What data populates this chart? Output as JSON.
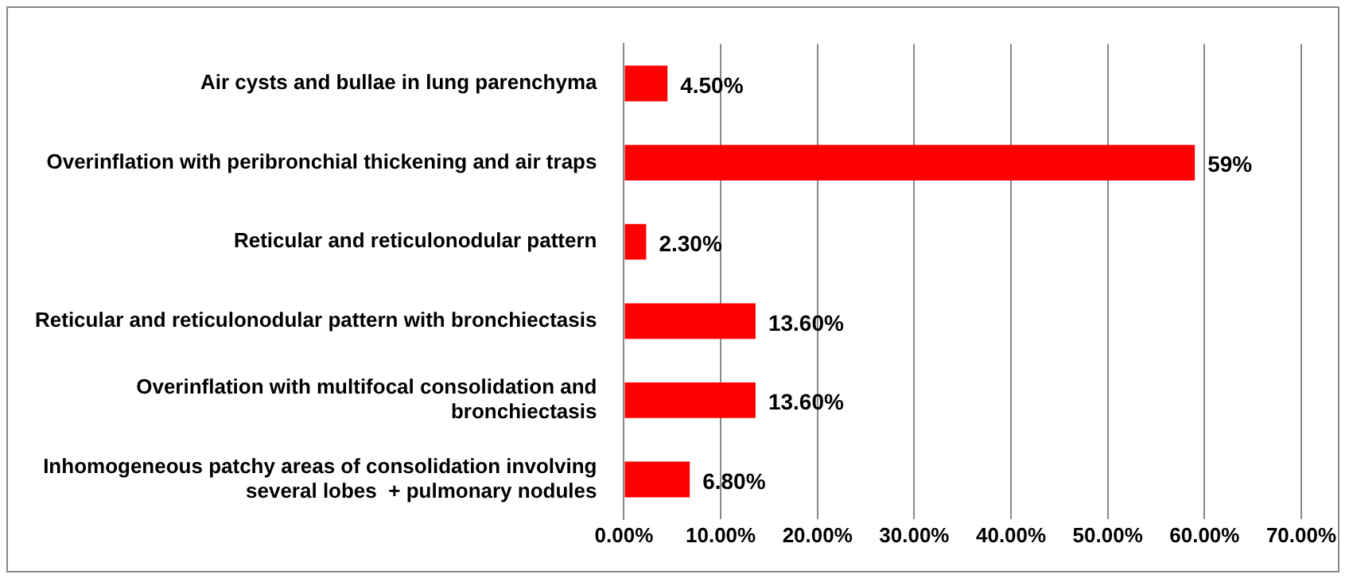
{
  "chart_data": {
    "type": "bar",
    "orientation": "horizontal",
    "categories": [
      "Air cysts and bullae in lung parenchyma",
      "Overinflation with peribronchial thickening and air traps",
      "Reticular and reticulonodular pattern",
      "Reticular and reticulonodular pattern with bronchiectasis",
      "Overinflation with multifocal consolidation and bronchiectasis",
      "Inhomogeneous patchy areas of consolidation involving several lobes  + pulmonary nodules"
    ],
    "values": [
      4.5,
      59,
      2.3,
      13.6,
      13.6,
      6.8
    ],
    "value_labels": [
      "4.50%",
      "59%",
      "2.30%",
      "13.60%",
      "13.60%",
      "6.80%"
    ],
    "color": "#ff0000",
    "xlim": [
      0,
      70
    ],
    "xticks": [
      {
        "value": 0,
        "label": "0.00%"
      },
      {
        "value": 10,
        "label": "10.00%"
      },
      {
        "value": 20,
        "label": "20.00%"
      },
      {
        "value": 30,
        "label": "30.00%"
      },
      {
        "value": 40,
        "label": "40.00%"
      },
      {
        "value": 50,
        "label": "50.00%"
      },
      {
        "value": 60,
        "label": "60.00%"
      },
      {
        "value": 70,
        "label": "70.00%"
      }
    ],
    "grid": "x",
    "legend": false
  }
}
